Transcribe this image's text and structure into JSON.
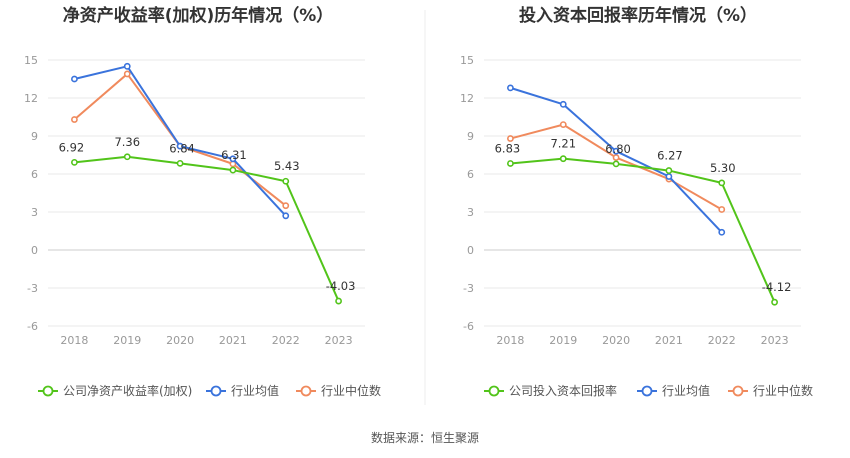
{
  "chart_data": [
    {
      "type": "line",
      "title": "净资产收益率(加权)历年情况（%）",
      "categories": [
        "2018",
        "2019",
        "2020",
        "2021",
        "2022",
        "2023"
      ],
      "ylim": [
        -6,
        15
      ],
      "yticks": [
        15,
        12,
        9,
        6,
        3,
        0,
        -3,
        -6
      ],
      "grid": true,
      "legend_position": "bottom",
      "series": [
        {
          "name": "公司净资产收益率(加权)",
          "color": "#52c41a",
          "values": [
            6.92,
            7.36,
            6.84,
            6.31,
            5.43,
            -4.03
          ],
          "labels": [
            "6.92",
            "7.36",
            "6.84",
            "6.31",
            "5.43",
            "-4.03"
          ]
        },
        {
          "name": "行业均值",
          "color": "#3a73dc",
          "values": [
            13.5,
            14.5,
            8.2,
            7.2,
            2.7,
            null
          ]
        },
        {
          "name": "行业中位数",
          "color": "#f08a5d",
          "values": [
            10.3,
            13.9,
            8.2,
            6.8,
            3.5,
            null
          ]
        }
      ]
    },
    {
      "type": "line",
      "title": "投入资本回报率历年情况（%）",
      "categories": [
        "2018",
        "2019",
        "2020",
        "2021",
        "2022",
        "2023"
      ],
      "ylim": [
        -6,
        15
      ],
      "yticks": [
        15,
        12,
        9,
        6,
        3,
        0,
        -3,
        -6
      ],
      "grid": true,
      "legend_position": "bottom",
      "series": [
        {
          "name": "公司投入资本回报率",
          "color": "#52c41a",
          "values": [
            6.83,
            7.21,
            6.8,
            6.27,
            5.3,
            -4.12
          ],
          "labels": [
            "6.83",
            "7.21",
            "6.80",
            "6.27",
            "5.30",
            "-4.12"
          ]
        },
        {
          "name": "行业均值",
          "color": "#3a73dc",
          "values": [
            12.8,
            11.5,
            7.8,
            5.8,
            1.4,
            null
          ]
        },
        {
          "name": "行业中位数",
          "color": "#f08a5d",
          "values": [
            8.8,
            9.9,
            7.3,
            5.6,
            3.2,
            null
          ]
        }
      ]
    }
  ],
  "footer": {
    "source": "数据来源：恒生聚源"
  }
}
